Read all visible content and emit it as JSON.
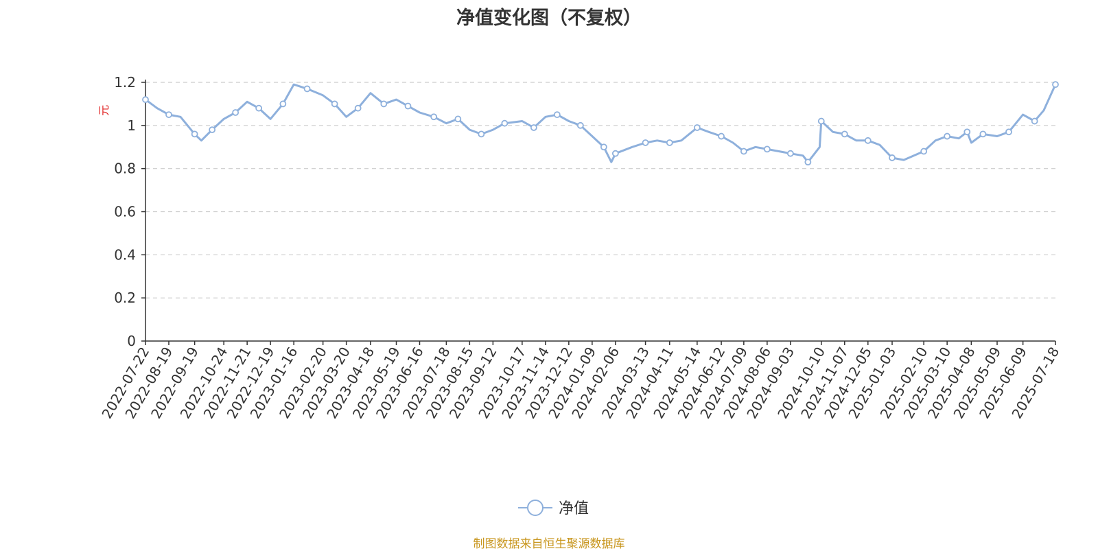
{
  "title": "净值变化图（不复权）",
  "source": "制图数据来自恒生聚源数据库",
  "chart_data": {
    "type": "line",
    "title": "净值变化图（不复权）",
    "ylabel": "元",
    "xlabel": "",
    "ylim": [
      0,
      1.2
    ],
    "y_ticks": [
      "0",
      "0.2",
      "0.4",
      "0.6",
      "0.8",
      "1",
      "1.2"
    ],
    "grid": true,
    "legend": "bottom-center",
    "line_color": "#8eb0dc",
    "x_ticks": [
      "2022-07-22",
      "2022-08-19",
      "2022-09-19",
      "2022-10-24",
      "2022-11-21",
      "2022-12-19",
      "2023-01-16",
      "2023-02-20",
      "2023-03-20",
      "2023-04-18",
      "2023-05-19",
      "2023-06-16",
      "2023-07-18",
      "2023-08-15",
      "2023-09-12",
      "2023-10-17",
      "2023-11-14",
      "2023-12-12",
      "2024-01-09",
      "2024-02-06",
      "2024-03-13",
      "2024-04-11",
      "2024-05-14",
      "2024-06-12",
      "2024-07-09",
      "2024-08-06",
      "2024-09-03",
      "2024-10-10",
      "2024-11-07",
      "2024-12-05",
      "2025-01-03",
      "2025-02-10",
      "2025-03-10",
      "2025-04-08",
      "2025-05-09",
      "2025-06-09",
      "2025-07-18"
    ],
    "series": [
      {
        "name": "净值",
        "x": [
          "2022-07-22",
          "2022-08-05",
          "2022-08-19",
          "2022-09-02",
          "2022-09-19",
          "2022-09-27",
          "2022-10-10",
          "2022-10-24",
          "2022-11-07",
          "2022-11-21",
          "2022-12-05",
          "2022-12-19",
          "2023-01-03",
          "2023-01-16",
          "2023-02-01",
          "2023-02-20",
          "2023-03-06",
          "2023-03-20",
          "2023-04-03",
          "2023-04-18",
          "2023-05-04",
          "2023-05-19",
          "2023-06-02",
          "2023-06-16",
          "2023-07-03",
          "2023-07-18",
          "2023-08-01",
          "2023-08-15",
          "2023-08-29",
          "2023-09-12",
          "2023-09-26",
          "2023-10-17",
          "2023-10-31",
          "2023-11-14",
          "2023-11-28",
          "2023-12-12",
          "2023-12-26",
          "2024-01-09",
          "2024-01-23",
          "2024-02-01",
          "2024-02-06",
          "2024-02-26",
          "2024-03-13",
          "2024-03-27",
          "2024-04-11",
          "2024-04-25",
          "2024-05-14",
          "2024-05-28",
          "2024-06-12",
          "2024-06-26",
          "2024-07-09",
          "2024-07-23",
          "2024-08-06",
          "2024-08-20",
          "2024-09-03",
          "2024-09-18",
          "2024-09-24",
          "2024-10-08",
          "2024-10-10",
          "2024-10-24",
          "2024-11-07",
          "2024-11-21",
          "2024-12-05",
          "2024-12-19",
          "2025-01-03",
          "2025-01-17",
          "2025-02-10",
          "2025-02-24",
          "2025-03-10",
          "2025-03-24",
          "2025-04-03",
          "2025-04-08",
          "2025-04-22",
          "2025-05-09",
          "2025-05-23",
          "2025-06-09",
          "2025-06-23",
          "2025-07-04",
          "2025-07-18"
        ],
        "values": [
          1.12,
          1.08,
          1.05,
          1.04,
          0.96,
          0.93,
          0.98,
          1.03,
          1.06,
          1.11,
          1.08,
          1.03,
          1.1,
          1.19,
          1.17,
          1.14,
          1.1,
          1.04,
          1.08,
          1.15,
          1.1,
          1.12,
          1.09,
          1.06,
          1.04,
          1.01,
          1.03,
          0.98,
          0.96,
          0.98,
          1.01,
          1.02,
          0.99,
          1.04,
          1.05,
          1.02,
          1.0,
          0.95,
          0.9,
          0.83,
          0.87,
          0.9,
          0.92,
          0.93,
          0.92,
          0.93,
          0.99,
          0.97,
          0.95,
          0.92,
          0.88,
          0.9,
          0.89,
          0.88,
          0.87,
          0.86,
          0.83,
          0.9,
          1.02,
          0.97,
          0.96,
          0.93,
          0.93,
          0.91,
          0.85,
          0.84,
          0.88,
          0.93,
          0.95,
          0.94,
          0.97,
          0.92,
          0.96,
          0.95,
          0.97,
          1.05,
          1.02,
          1.07,
          1.19
        ]
      }
    ]
  }
}
